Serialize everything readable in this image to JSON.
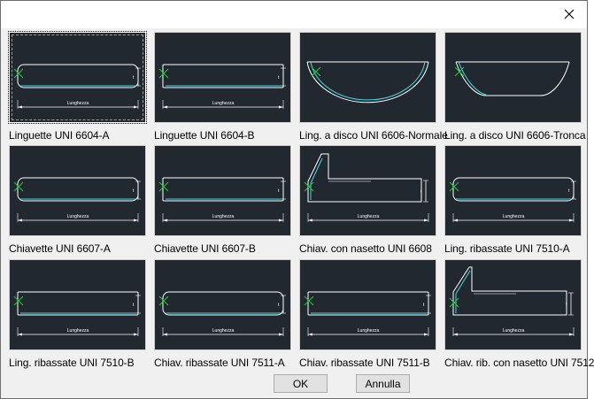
{
  "dialog": {
    "close_icon": "close-icon",
    "ok_label": "OK",
    "cancel_label": "Annulla"
  },
  "thumbnail": {
    "dimension_label": "Lunghezza",
    "height_mark": "t",
    "insertion_icon": "x-marker-icon"
  },
  "items": [
    {
      "label": "Linguette UNI 6604-A",
      "shape": "rounded-key",
      "selected": true
    },
    {
      "label": "Linguette UNI 6604-B",
      "shape": "square-key",
      "selected": false
    },
    {
      "label": "Ling. a disco UNI 6606-Normale",
      "shape": "disc-full",
      "selected": false
    },
    {
      "label": "Ling. a disco UNI 6606-Tronca",
      "shape": "disc-truncated",
      "selected": false
    },
    {
      "label": "Chiavette UNI 6607-A",
      "shape": "rounded-key",
      "selected": false
    },
    {
      "label": "Chiavette UNI 6607-B",
      "shape": "square-key",
      "selected": false
    },
    {
      "label": "Chiav. con nasetto UNI 6608",
      "shape": "gib-head",
      "selected": false
    },
    {
      "label": "Ling. ribassate UNI 7510-A",
      "shape": "rounded-key",
      "selected": false
    },
    {
      "label": "Ling. ribassate UNI 7510-B",
      "shape": "square-key",
      "selected": false
    },
    {
      "label": "Chiav. ribassate UNI 7511-A",
      "shape": "rounded-key",
      "selected": false
    },
    {
      "label": "Chiav. ribassate UNI 7511-B",
      "shape": "square-key",
      "selected": false
    },
    {
      "label": "Chiav. rib. con nasetto UNI 7512",
      "shape": "gib-head-low",
      "selected": false
    }
  ],
  "colors": {
    "thumbnail_bg": "#212830",
    "outline": "#ffffff",
    "profile_cyan": "#48d8e0",
    "marker_green": "#2ec83a"
  }
}
